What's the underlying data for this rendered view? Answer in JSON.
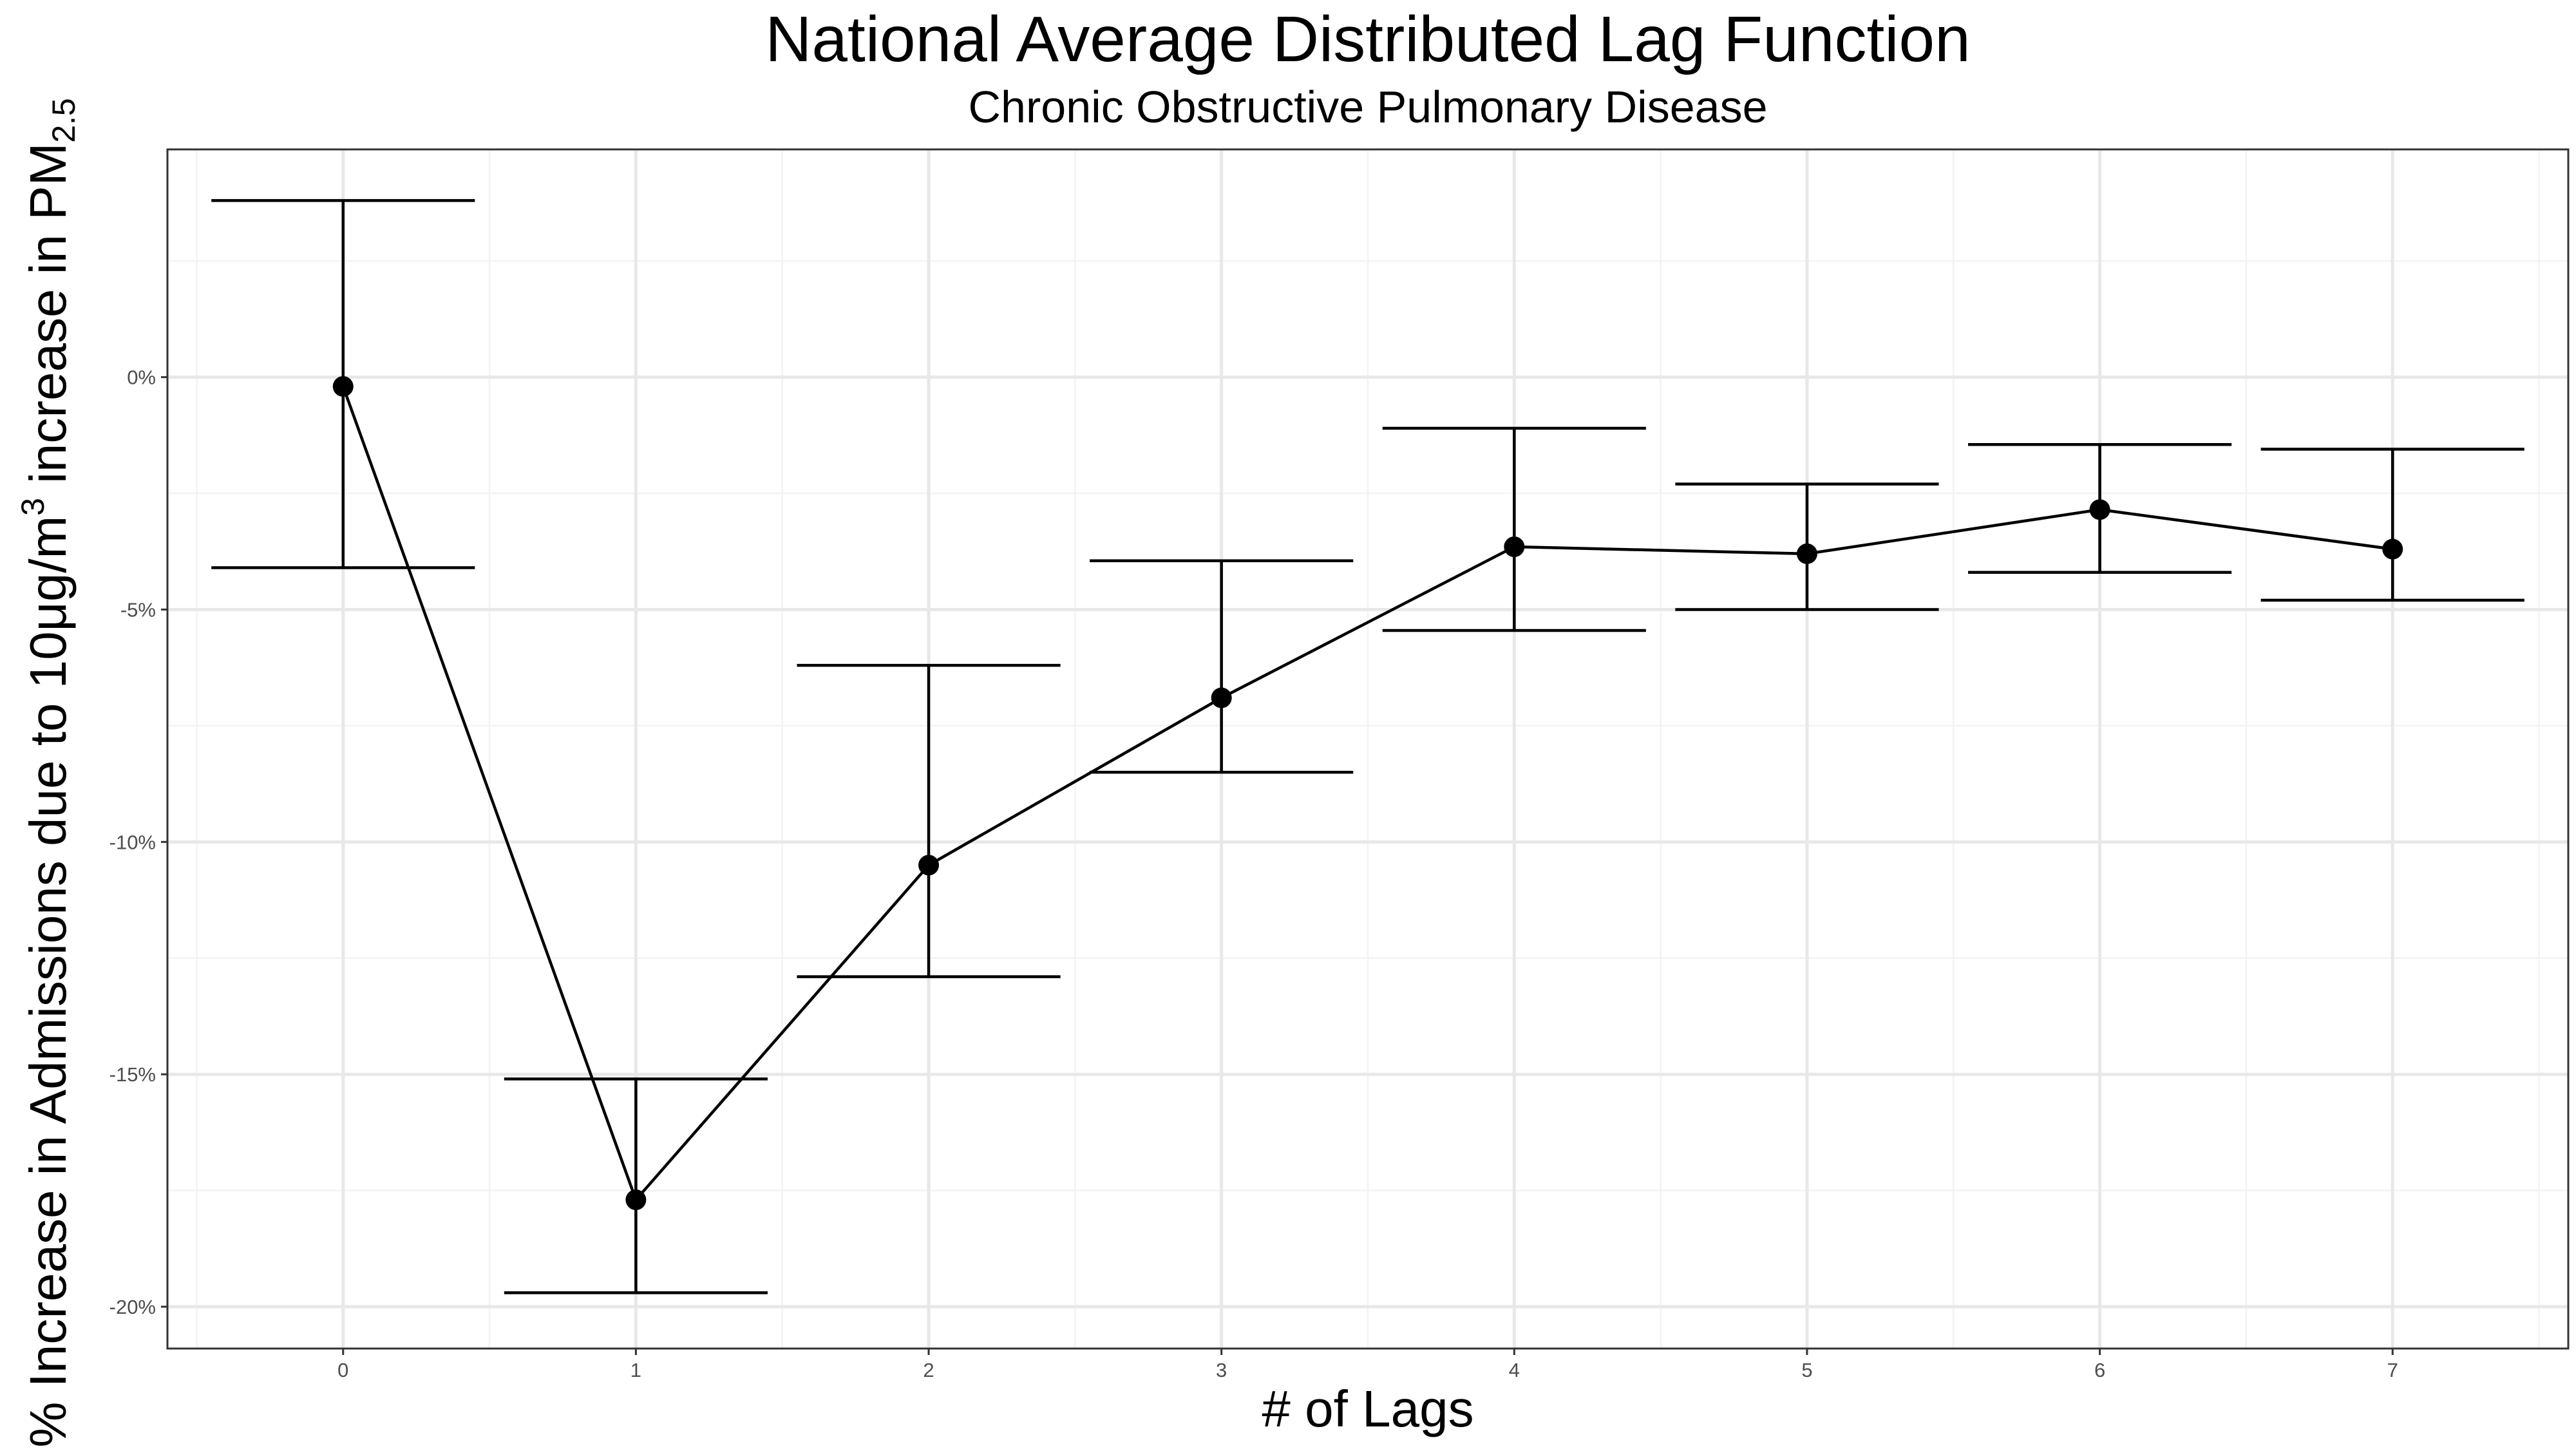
{
  "chart_data": {
    "type": "line",
    "title": "National Average Distributed Lag Function",
    "subtitle": "Chronic Obstructive Pulmonary Disease",
    "xlabel": "# of Lags",
    "ylabel": {
      "main": "% Increase in Admissions due to 10μg/m",
      "sup": "3",
      "middle": " increase in PM",
      "sub": "2.5"
    },
    "x_ticks": [
      "0",
      "1",
      "2",
      "3",
      "4",
      "5",
      "6",
      "7"
    ],
    "y_ticks": [
      {
        "value": 0,
        "label": "0%"
      },
      {
        "value": -5,
        "label": "-5%"
      },
      {
        "value": -10,
        "label": "-10%"
      },
      {
        "value": -15,
        "label": "-15%"
      },
      {
        "value": -20,
        "label": "-20%"
      }
    ],
    "xlim": [
      -0.6,
      7.6
    ],
    "ylim": [
      -20.9,
      4.9
    ],
    "grid": true,
    "points": [
      {
        "lag": 0,
        "estimate": -0.2,
        "lower": -4.1,
        "upper": 3.8
      },
      {
        "lag": 1,
        "estimate": -17.7,
        "lower": -19.7,
        "upper": -15.1
      },
      {
        "lag": 2,
        "estimate": -10.5,
        "lower": -12.9,
        "upper": -6.2
      },
      {
        "lag": 3,
        "estimate": -6.9,
        "lower": -8.5,
        "upper": -3.95
      },
      {
        "lag": 4,
        "estimate": -3.65,
        "lower": -5.45,
        "upper": -1.1
      },
      {
        "lag": 5,
        "estimate": -3.8,
        "lower": -5.0,
        "upper": -2.3
      },
      {
        "lag": 6,
        "estimate": -2.85,
        "lower": -4.2,
        "upper": -1.45
      },
      {
        "lag": 7,
        "estimate": -3.7,
        "lower": -4.8,
        "upper": -1.55
      }
    ]
  }
}
